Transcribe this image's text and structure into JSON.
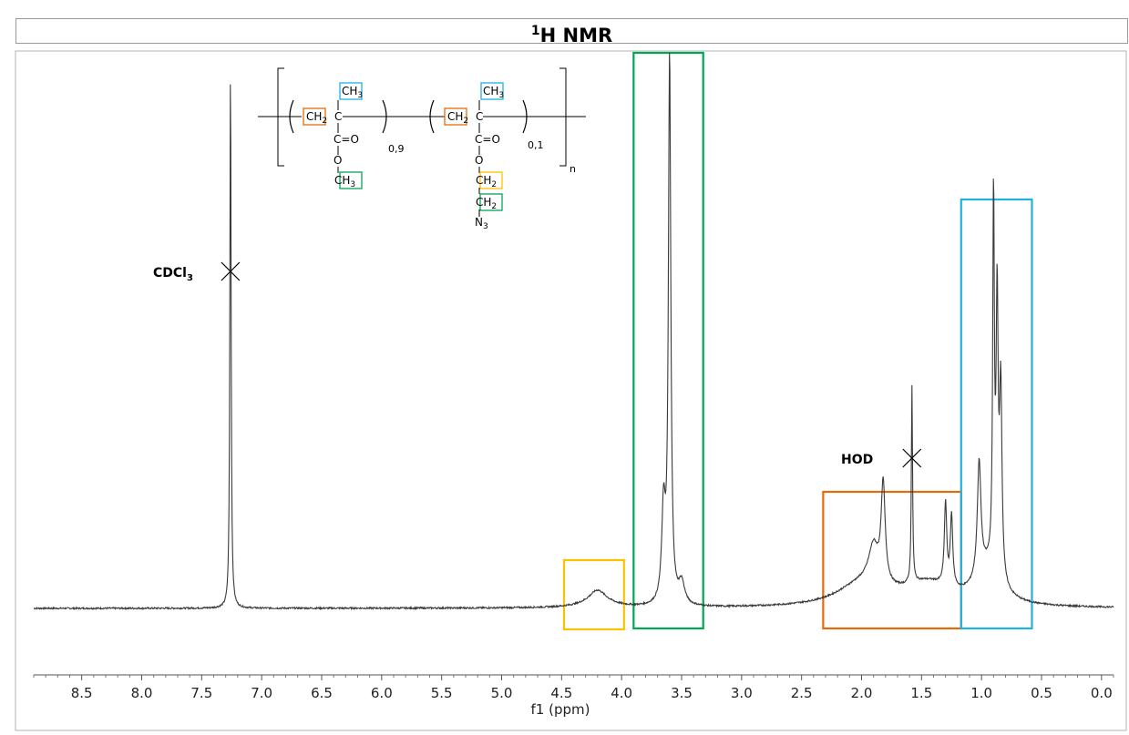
{
  "chart_data": {
    "type": "line",
    "title_sup": "1",
    "title": "H NMR",
    "xlabel": "f1 (ppm)",
    "ylabel": "",
    "xlim": [
      8.9,
      -0.1
    ],
    "x_reversed": true,
    "grid": false,
    "x_ticks": [
      8.5,
      8.0,
      7.5,
      7.0,
      6.5,
      6.0,
      5.5,
      5.0,
      4.5,
      4.0,
      3.5,
      3.0,
      2.5,
      2.0,
      1.5,
      1.0,
      0.5,
      0.0
    ],
    "x_tick_labels": [
      "8.5",
      "8.0",
      "7.5",
      "7.0",
      "6.5",
      "6.0",
      "5.5",
      "5.0",
      "4.5",
      "4.0",
      "3.5",
      "3.0",
      "2.5",
      "2.0",
      "1.5",
      "1.0",
      "0.5",
      "0.0"
    ],
    "series": [
      {
        "color": "#3a3a3a",
        "peaks_ppm": [
          7.26,
          4.2,
          3.65,
          3.6,
          3.5,
          1.9,
          1.82,
          1.58,
          1.3,
          1.25,
          1.02,
          0.9,
          0.87,
          0.84
        ],
        "peak_heights": [
          1.0,
          0.02,
          0.17,
          1.0,
          0.04,
          0.07,
          0.18,
          0.36,
          0.15,
          0.13,
          0.21,
          0.68,
          0.49,
          0.35
        ]
      }
    ],
    "annotations": [
      {
        "label_main": "CDCl",
        "label_sub": "3",
        "ppm": 7.26,
        "marker": "x"
      },
      {
        "label_main": "HOD",
        "label_sub": "",
        "ppm": 1.58,
        "marker": "x"
      }
    ],
    "highlight_boxes": [
      {
        "color": "#ffc000",
        "ppm_range": [
          4.48,
          3.98
        ],
        "name": "box-yellow"
      },
      {
        "color": "#00a651",
        "ppm_range": [
          3.9,
          3.32
        ],
        "name": "box-green"
      },
      {
        "color": "#e36c0a",
        "ppm_range": [
          2.32,
          1.17
        ],
        "name": "box-orange"
      },
      {
        "color": "#1fb1e3",
        "ppm_range": [
          1.17,
          0.58
        ],
        "name": "box-blue"
      }
    ]
  },
  "structure": {
    "ch3": "CH",
    "sub3": "3",
    "ch2": "CH",
    "sub2": "2",
    "c": "C",
    "o": "O",
    "eq": "=",
    "n3": "N",
    "sub_n3": "3",
    "frac_a": "0,9",
    "frac_b": "0,1",
    "n": "n"
  },
  "colors": {
    "orange": "#e36c0a",
    "blue": "#1fb1e3",
    "green": "#00a651",
    "yellow": "#ffc000"
  }
}
